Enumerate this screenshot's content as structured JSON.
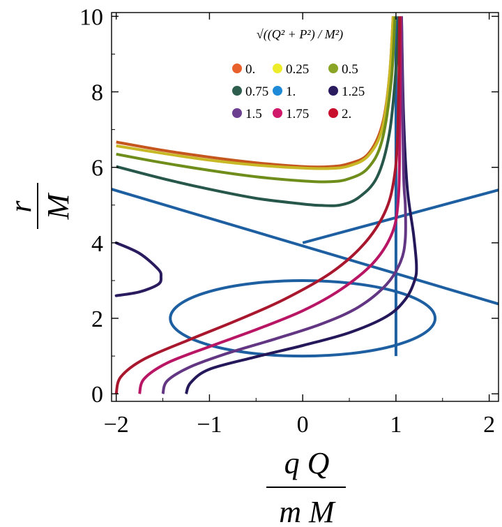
{
  "chart_data": {
    "type": "line",
    "x_label": {
      "numerator": "q Q",
      "denominator": "m M"
    },
    "y_label": {
      "numerator": "r",
      "denominator": "M"
    },
    "xlim": [
      -2.05,
      2.1
    ],
    "ylim": [
      -0.2,
      10.1
    ],
    "x_ticks": [
      {
        "value": -2,
        "label": "−2"
      },
      {
        "value": -1,
        "label": "−1"
      },
      {
        "value": 0,
        "label": "0"
      },
      {
        "value": 1,
        "label": "1"
      },
      {
        "value": 2,
        "label": "2"
      }
    ],
    "y_ticks": [
      {
        "value": 0,
        "label": "0"
      },
      {
        "value": 2,
        "label": "2"
      },
      {
        "value": 4,
        "label": "4"
      },
      {
        "value": 6,
        "label": "6"
      },
      {
        "value": 8,
        "label": "8"
      },
      {
        "value": 10,
        "label": "10"
      }
    ],
    "legend": {
      "title": "√((Q² + P²) / M²)",
      "placement": "top-right",
      "entries": [
        {
          "label": "0.",
          "color": "#e8612c"
        },
        {
          "label": "0.25",
          "color": "#ecec2a"
        },
        {
          "label": "0.5",
          "color": "#8aa526"
        },
        {
          "label": "0.75",
          "color": "#2e5e4e"
        },
        {
          "label": "1.",
          "color": "#1f8ad8"
        },
        {
          "label": "1.25",
          "color": "#2a1a5e"
        },
        {
          "label": "1.5",
          "color": "#6c3f90"
        },
        {
          "label": "1.75",
          "color": "#d0196a"
        },
        {
          "label": "2.",
          "color": "#c8102e"
        }
      ]
    },
    "series": [
      {
        "name": "0.",
        "color": "#c4561e",
        "points": [
          [
            -2.0,
            6.67
          ],
          [
            -1.5,
            6.45
          ],
          [
            -1.0,
            6.27
          ],
          [
            -0.5,
            6.12
          ],
          [
            0.0,
            6.02
          ],
          [
            0.3,
            6.02
          ],
          [
            0.5,
            6.1
          ],
          [
            0.7,
            6.35
          ],
          [
            0.85,
            7.1
          ],
          [
            0.93,
            8.4
          ],
          [
            0.97,
            10.0
          ]
        ]
      },
      {
        "name": "0.25",
        "color": "#c9b825",
        "points": [
          [
            -2.0,
            6.57
          ],
          [
            -1.5,
            6.37
          ],
          [
            -1.0,
            6.19
          ],
          [
            -0.5,
            6.06
          ],
          [
            0.0,
            5.98
          ],
          [
            0.3,
            5.97
          ],
          [
            0.5,
            6.04
          ],
          [
            0.7,
            6.3
          ],
          [
            0.85,
            7.0
          ],
          [
            0.93,
            8.4
          ],
          [
            0.97,
            10.0
          ]
        ]
      },
      {
        "name": "0.5",
        "color": "#6f8d1b",
        "points": [
          [
            -2.0,
            6.35
          ],
          [
            -1.5,
            6.12
          ],
          [
            -1.0,
            5.92
          ],
          [
            -0.5,
            5.75
          ],
          [
            0.0,
            5.64
          ],
          [
            0.3,
            5.62
          ],
          [
            0.5,
            5.7
          ],
          [
            0.7,
            5.98
          ],
          [
            0.85,
            6.7
          ],
          [
            0.95,
            8.3
          ],
          [
            0.99,
            10.0
          ]
        ]
      },
      {
        "name": "0.75",
        "color": "#27574a",
        "points": [
          [
            -2.0,
            6.02
          ],
          [
            -1.5,
            5.7
          ],
          [
            -1.0,
            5.42
          ],
          [
            -0.5,
            5.18
          ],
          [
            0.0,
            5.03
          ],
          [
            0.2,
            4.99
          ],
          [
            0.4,
            5.0
          ],
          [
            0.6,
            5.2
          ],
          [
            0.8,
            5.75
          ],
          [
            0.93,
            6.9
          ],
          [
            1.0,
            8.6
          ],
          [
            1.03,
            10.0
          ]
        ]
      },
      {
        "name": "1.25",
        "color": "#25185a",
        "points": [
          [
            -1.25,
            0.0
          ],
          [
            -1.2,
            0.3
          ],
          [
            -1.0,
            0.65
          ],
          [
            -0.5,
            0.98
          ],
          [
            0.0,
            1.28
          ],
          [
            0.5,
            1.62
          ],
          [
            0.9,
            2.05
          ],
          [
            1.1,
            2.5
          ],
          [
            1.2,
            3.0
          ],
          [
            1.22,
            3.4
          ],
          [
            1.19,
            4.2
          ],
          [
            1.12,
            5.5
          ],
          [
            1.08,
            7.5
          ],
          [
            1.06,
            10.0
          ]
        ]
      },
      {
        "name": "1.5",
        "color": "#623683",
        "points": [
          [
            -1.5,
            0.0
          ],
          [
            -1.45,
            0.35
          ],
          [
            -1.2,
            0.72
          ],
          [
            -0.8,
            1.08
          ],
          [
            -0.3,
            1.45
          ],
          [
            0.2,
            1.85
          ],
          [
            0.6,
            2.3
          ],
          [
            0.9,
            2.9
          ],
          [
            1.05,
            3.5
          ],
          [
            1.1,
            4.1
          ],
          [
            1.1,
            5.0
          ],
          [
            1.08,
            6.0
          ],
          [
            1.06,
            10.0
          ]
        ]
      },
      {
        "name": "1.75",
        "color": "#b81665",
        "points": [
          [
            -1.75,
            0.0
          ],
          [
            -1.7,
            0.4
          ],
          [
            -1.45,
            0.82
          ],
          [
            -1.0,
            1.25
          ],
          [
            -0.5,
            1.7
          ],
          [
            0.0,
            2.2
          ],
          [
            0.4,
            2.75
          ],
          [
            0.75,
            3.45
          ],
          [
            0.95,
            4.2
          ],
          [
            1.02,
            5.0
          ],
          [
            1.04,
            6.5
          ],
          [
            1.05,
            10.0
          ]
        ]
      },
      {
        "name": "2.",
        "color": "#a8172d",
        "points": [
          [
            -2.0,
            0.0
          ],
          [
            -1.95,
            0.45
          ],
          [
            -1.7,
            0.92
          ],
          [
            -1.2,
            1.45
          ],
          [
            -0.7,
            1.95
          ],
          [
            -0.2,
            2.5
          ],
          [
            0.3,
            3.2
          ],
          [
            0.65,
            3.95
          ],
          [
            0.88,
            4.8
          ],
          [
            0.98,
            5.7
          ],
          [
            1.02,
            7.0
          ],
          [
            1.04,
            10.0
          ]
        ]
      }
    ],
    "extra_curves": [
      {
        "kind": "line",
        "color": "#1d5fa0",
        "points": [
          [
            -2.05,
            5.42
          ],
          [
            2.1,
            2.38
          ]
        ]
      },
      {
        "kind": "line",
        "color": "#1d5fa0",
        "points": [
          [
            0.0,
            4.0
          ],
          [
            2.1,
            5.4
          ]
        ]
      },
      {
        "kind": "line",
        "color": "#1d5fa0",
        "points": [
          [
            1.0,
            1.0
          ],
          [
            1.0,
            10.0
          ]
        ]
      },
      {
        "kind": "ellipse",
        "color": "#1d5fa0",
        "cx": 0.0,
        "cy": 2.0,
        "rx": 1.42,
        "ry": 1.0
      },
      {
        "kind": "arc",
        "color": "#2a1a5e",
        "points": [
          [
            -2.0,
            4.0
          ],
          [
            -1.75,
            3.72
          ],
          [
            -1.55,
            3.3
          ],
          [
            -1.52,
            3.1
          ],
          [
            -1.55,
            2.9
          ],
          [
            -1.75,
            2.7
          ],
          [
            -2.0,
            2.6
          ]
        ]
      }
    ]
  }
}
